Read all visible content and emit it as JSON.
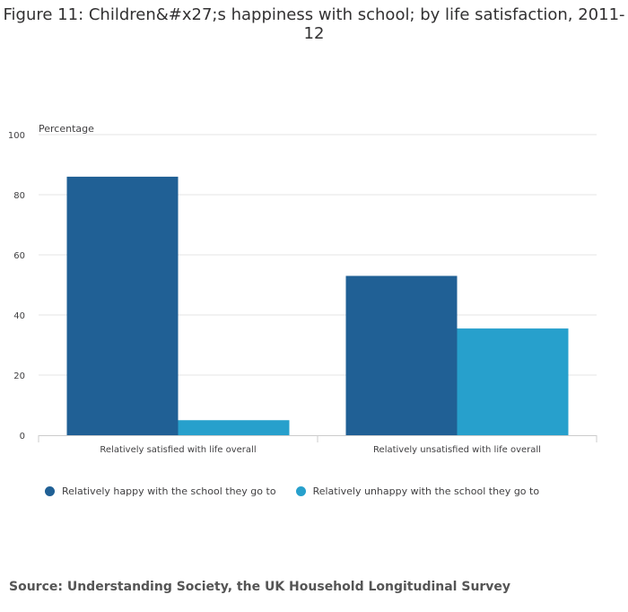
{
  "chart_data": {
    "type": "bar",
    "title": "Figure 11: Children&#x27;s happiness with school; by life satisfaction, 2011-12",
    "ylabel": "Percentage",
    "xlabel": "",
    "ylim": [
      0,
      100
    ],
    "yticks": [
      0,
      20,
      40,
      60,
      80,
      100
    ],
    "grid": true,
    "legend_position": "bottom-left",
    "categories": [
      "Relatively satisfied with life overall",
      "Relatively unsatisfied with life overall"
    ],
    "series": [
      {
        "name": "Relatively happy with the school they go to",
        "color": "#206095",
        "values": [
          86,
          53
        ]
      },
      {
        "name": "Relatively unhappy with the school they go to",
        "color": "#27a0cc",
        "values": [
          5,
          35.5
        ]
      }
    ]
  },
  "source": "Source: Understanding Society, the UK Household Longitudinal Survey"
}
